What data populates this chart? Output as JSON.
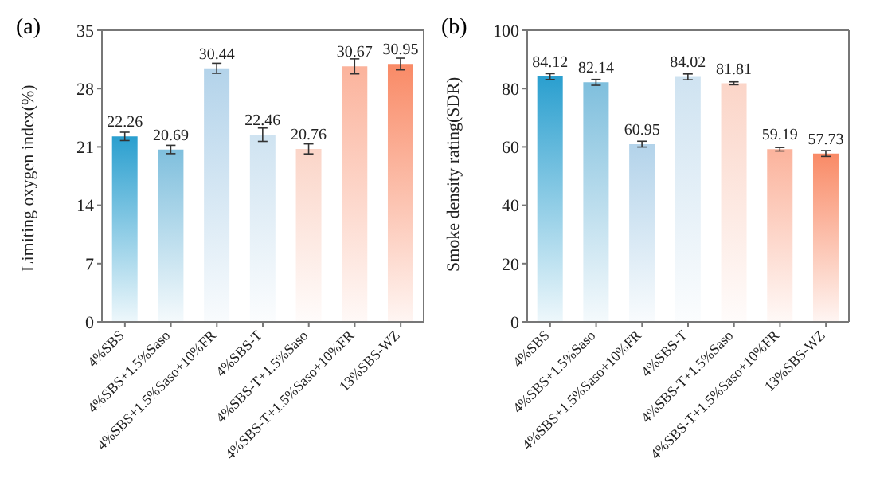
{
  "chart_data": [
    {
      "type": "bar",
      "title": "(a)",
      "ylabel": "Limiting oxygen index(%)",
      "categories": [
        "4%SBS",
        "4%SBS+1.5%Saso",
        "4%SBS+1.5%Saso+10%FR",
        "4%SBS-T",
        "4%SBS-T+1.5%Saso",
        "4%SBS-T+1.5%Saso+10%FR",
        "13%SBS-WZ"
      ],
      "values": [
        22.26,
        20.69,
        30.44,
        22.46,
        20.76,
        30.67,
        30.95
      ],
      "errors": [
        0.5,
        0.5,
        0.6,
        0.8,
        0.6,
        0.9,
        0.7
      ],
      "colors": [
        "#2a9fcf",
        "#7fbfdd",
        "#b3d3ea",
        "#cfe3f1",
        "#fbd5c8",
        "#fbb39c",
        "#f98a66"
      ],
      "ylim": [
        0,
        35
      ],
      "yticks": [
        0,
        7,
        14,
        21,
        28,
        35
      ],
      "data_labels": true
    },
    {
      "type": "bar",
      "title": "(b)",
      "ylabel": "Smoke density rating(SDR)",
      "categories": [
        "4%SBS",
        "4%SBS+1.5%Saso",
        "4%SBS+1.5%Saso+10%FR",
        "4%SBS-T",
        "4%SBS-T+1.5%Saso",
        "4%SBS-T+1.5%Saso+10%FR",
        "13%SBS-WZ"
      ],
      "values": [
        84.12,
        82.14,
        60.95,
        84.02,
        81.81,
        59.19,
        57.73
      ],
      "errors": [
        1,
        1,
        1,
        1,
        0.5,
        0.6,
        1
      ],
      "colors": [
        "#2a9fcf",
        "#7fbfdd",
        "#b3d3ea",
        "#cfe3f1",
        "#fbd5c8",
        "#fbb39c",
        "#f98a66"
      ],
      "ylim": [
        0,
        100
      ],
      "yticks": [
        0,
        20,
        40,
        60,
        80,
        100
      ],
      "data_labels": true
    }
  ]
}
